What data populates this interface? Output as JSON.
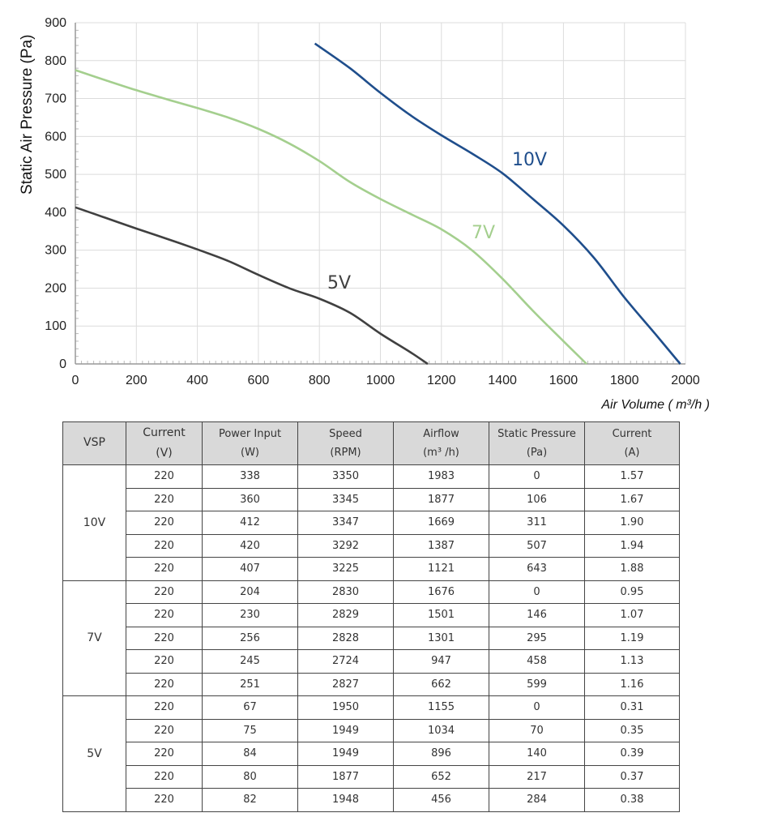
{
  "chart_data": {
    "type": "line",
    "ylabel": "Static Air Pressure  (Pa)",
    "xlabel": "Air Volume ( m³/h )",
    "xlim": [
      0,
      2000
    ],
    "ylim": [
      0,
      900
    ],
    "x_ticks": [
      "0",
      "200",
      "400",
      "600",
      "800",
      "1000",
      "1200",
      "1400",
      "1600",
      "1800",
      "2000"
    ],
    "y_ticks": [
      "0",
      "100",
      "200",
      "300",
      "400",
      "500",
      "600",
      "700",
      "800",
      "900"
    ],
    "grid": true,
    "series": [
      {
        "name": "10V",
        "color": "#1f4e8c",
        "x": [
          785,
          900,
          1000,
          1100,
          1200,
          1300,
          1400,
          1500,
          1600,
          1700,
          1800,
          1900,
          1983
        ],
        "y": [
          845,
          780,
          715,
          655,
          603,
          555,
          503,
          435,
          365,
          280,
          175,
          80,
          0
        ]
      },
      {
        "name": "7V",
        "color": "#a4cf8e",
        "x": [
          0,
          100,
          200,
          300,
          400,
          500,
          600,
          700,
          800,
          900,
          1000,
          1100,
          1200,
          1300,
          1400,
          1500,
          1600,
          1676
        ],
        "y": [
          775,
          748,
          722,
          698,
          675,
          650,
          620,
          582,
          535,
          480,
          435,
          395,
          355,
          300,
          225,
          140,
          60,
          0
        ]
      },
      {
        "name": "5V",
        "color": "#404040",
        "x": [
          0,
          100,
          200,
          300,
          400,
          500,
          600,
          700,
          800,
          900,
          1000,
          1100,
          1155
        ],
        "y": [
          413,
          385,
          357,
          330,
          302,
          272,
          235,
          200,
          172,
          135,
          80,
          30,
          0
        ]
      }
    ]
  },
  "table": {
    "headers": [
      {
        "line1": "VSP",
        "line2": ""
      },
      {
        "line1": "Current",
        "line2": "(V)"
      },
      {
        "line1": "Power Input",
        "line2": "(W)"
      },
      {
        "line1": "Speed",
        "line2": "(RPM)"
      },
      {
        "line1": "Airflow",
        "line2": "(m³ /h)"
      },
      {
        "line1": "Static Pressure",
        "line2": "(Pa)"
      },
      {
        "line1": "Current",
        "line2": "(A)"
      }
    ],
    "groups": [
      {
        "vsp": "10V",
        "rows": [
          [
            "220",
            "338",
            "3350",
            "1983",
            "0",
            "1.57"
          ],
          [
            "220",
            "360",
            "3345",
            "1877",
            "106",
            "1.67"
          ],
          [
            "220",
            "412",
            "3347",
            "1669",
            "311",
            "1.90"
          ],
          [
            "220",
            "420",
            "3292",
            "1387",
            "507",
            "1.94"
          ],
          [
            "220",
            "407",
            "3225",
            "1121",
            "643",
            "1.88"
          ]
        ]
      },
      {
        "vsp": "7V",
        "rows": [
          [
            "220",
            "204",
            "2830",
            "1676",
            "0",
            "0.95"
          ],
          [
            "220",
            "230",
            "2829",
            "1501",
            "146",
            "1.07"
          ],
          [
            "220",
            "256",
            "2828",
            "1301",
            "295",
            "1.19"
          ],
          [
            "220",
            "245",
            "2724",
            "947",
            "458",
            "1.13"
          ],
          [
            "220",
            "251",
            "2827",
            "662",
            "599",
            "1.16"
          ]
        ]
      },
      {
        "vsp": "5V",
        "rows": [
          [
            "220",
            "67",
            "1950",
            "1155",
            "0",
            "0.31"
          ],
          [
            "220",
            "75",
            "1949",
            "1034",
            "70",
            "0.35"
          ],
          [
            "220",
            "84",
            "1949",
            "896",
            "140",
            "0.39"
          ],
          [
            "220",
            "80",
            "1877",
            "652",
            "217",
            "0.37"
          ],
          [
            "220",
            "82",
            "1948",
            "456",
            "284",
            "0.38"
          ]
        ]
      }
    ]
  }
}
